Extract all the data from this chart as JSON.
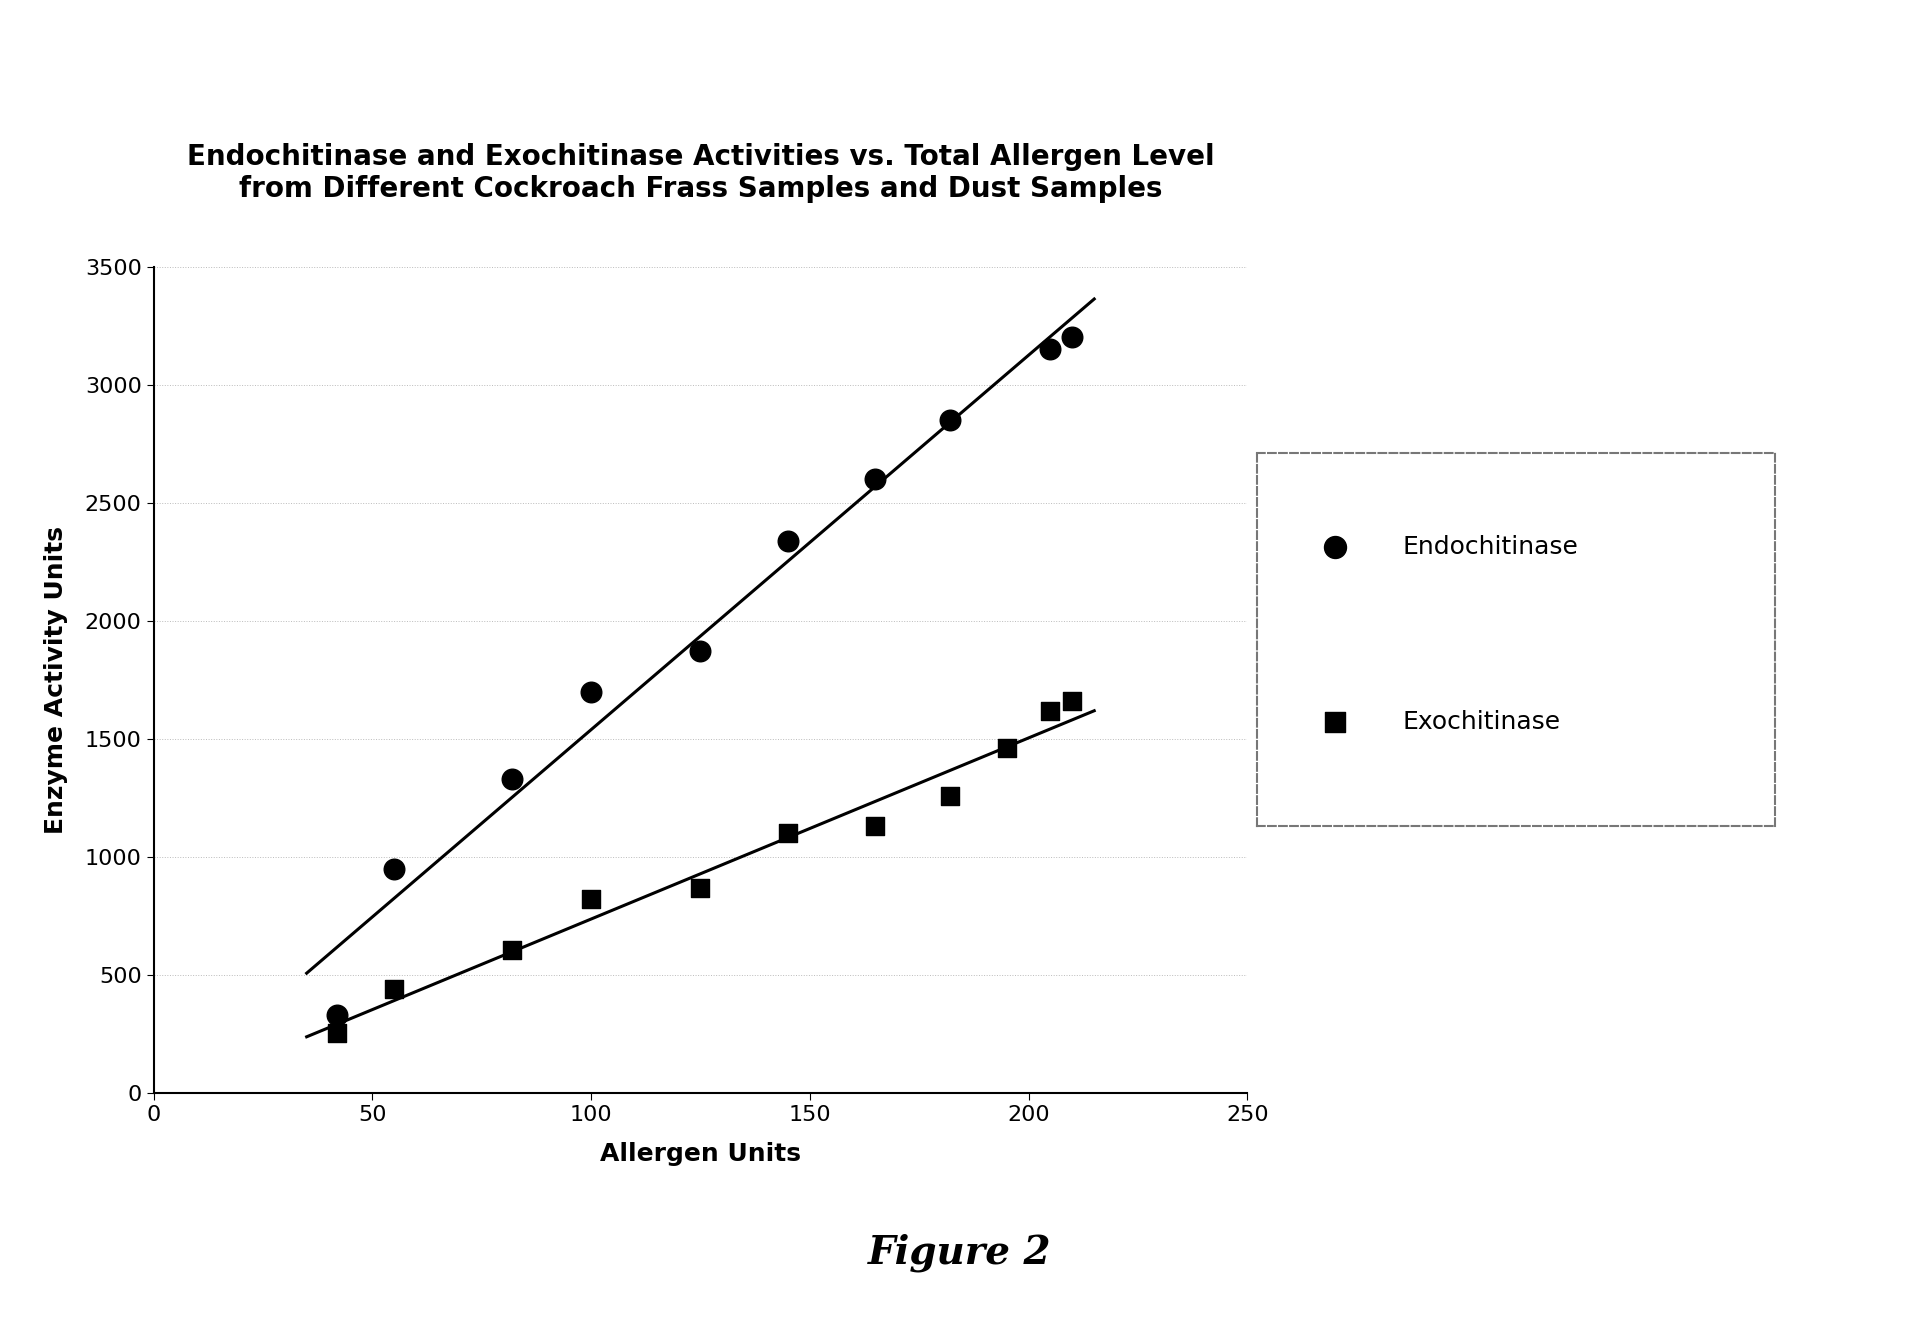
{
  "title_line1": "Endochitinase and Exochitinase Activities vs. Total Allergen Level",
  "title_line2": "from Different Cockroach Frass Samples and Dust Samples",
  "xlabel": "Allergen Units",
  "ylabel": "Enzyme Activity Units",
  "figure_label": "Figure 2",
  "xlim": [
    0,
    250
  ],
  "ylim": [
    0,
    3500
  ],
  "xticks": [
    0,
    50,
    100,
    150,
    200,
    250
  ],
  "yticks": [
    0,
    500,
    1000,
    1500,
    2000,
    2500,
    3000,
    3500
  ],
  "endo_x": [
    42,
    55,
    82,
    100,
    125,
    145,
    165,
    182,
    205,
    210
  ],
  "endo_y": [
    330,
    950,
    1330,
    1700,
    1870,
    2340,
    2600,
    2850,
    3150,
    3200
  ],
  "exo_x": [
    42,
    55,
    82,
    100,
    125,
    145,
    165,
    182,
    195,
    205,
    210
  ],
  "exo_y": [
    255,
    440,
    605,
    820,
    870,
    1100,
    1130,
    1260,
    1460,
    1620,
    1660
  ],
  "marker_color": "#000000",
  "line_color": "#000000",
  "background_color": "#ffffff",
  "legend_labels": [
    "Endochitinase",
    "Exochitinase"
  ],
  "title_fontsize": 20,
  "axis_label_fontsize": 18,
  "tick_fontsize": 16,
  "figure_label_fontsize": 28,
  "legend_fontsize": 18,
  "line_x_start": 35,
  "line_x_end": 215
}
